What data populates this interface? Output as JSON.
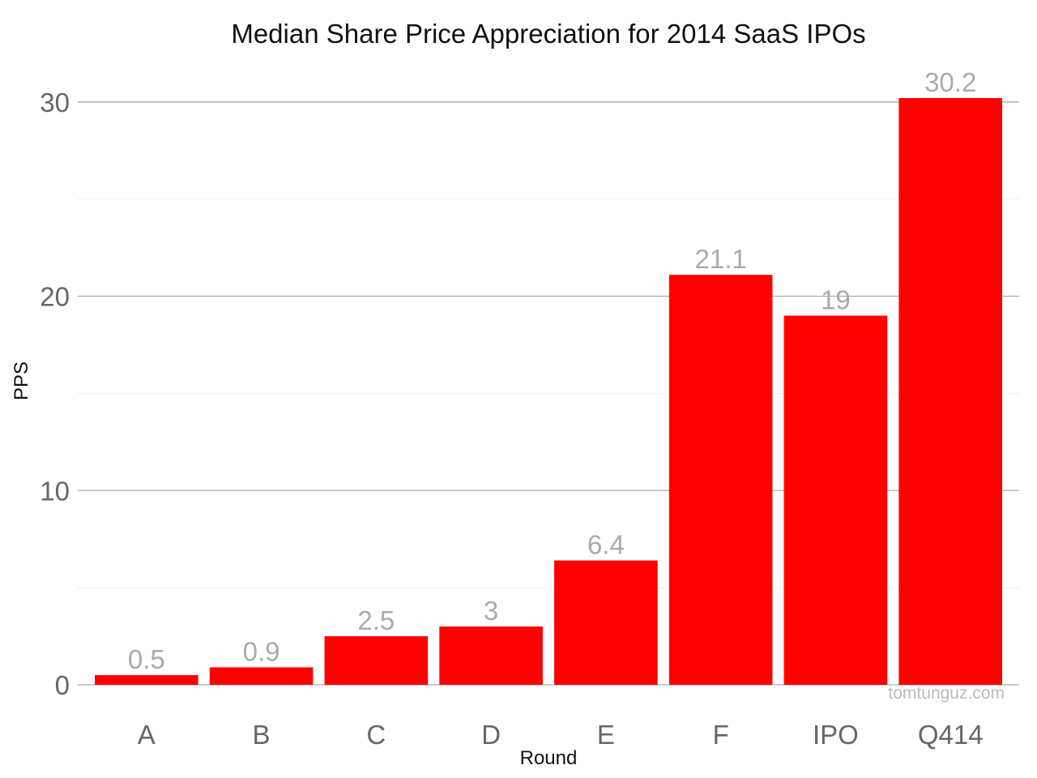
{
  "chart_data": {
    "type": "bar",
    "title": "Median Share Price Appreciation for 2014 SaaS IPOs",
    "xlabel": "Round",
    "ylabel": "PPS",
    "categories": [
      "A",
      "B",
      "C",
      "D",
      "E",
      "F",
      "IPO",
      "Q414"
    ],
    "values": [
      0.5,
      0.9,
      2.5,
      3,
      6.4,
      21.1,
      19,
      30.2
    ],
    "value_labels": [
      "0.5",
      "0.9",
      "2.5",
      "3",
      "6.4",
      "21.1",
      "19",
      "30.2"
    ],
    "ylim": [
      0,
      30.2
    ],
    "yticks": [
      0,
      10,
      20,
      30
    ],
    "ytick_labels": [
      "0",
      "10",
      "20",
      "30"
    ],
    "grid": true,
    "minor_grid": true,
    "legend": "none",
    "bar_color": "#ff0000",
    "watermark": "tomtunguz.com"
  }
}
